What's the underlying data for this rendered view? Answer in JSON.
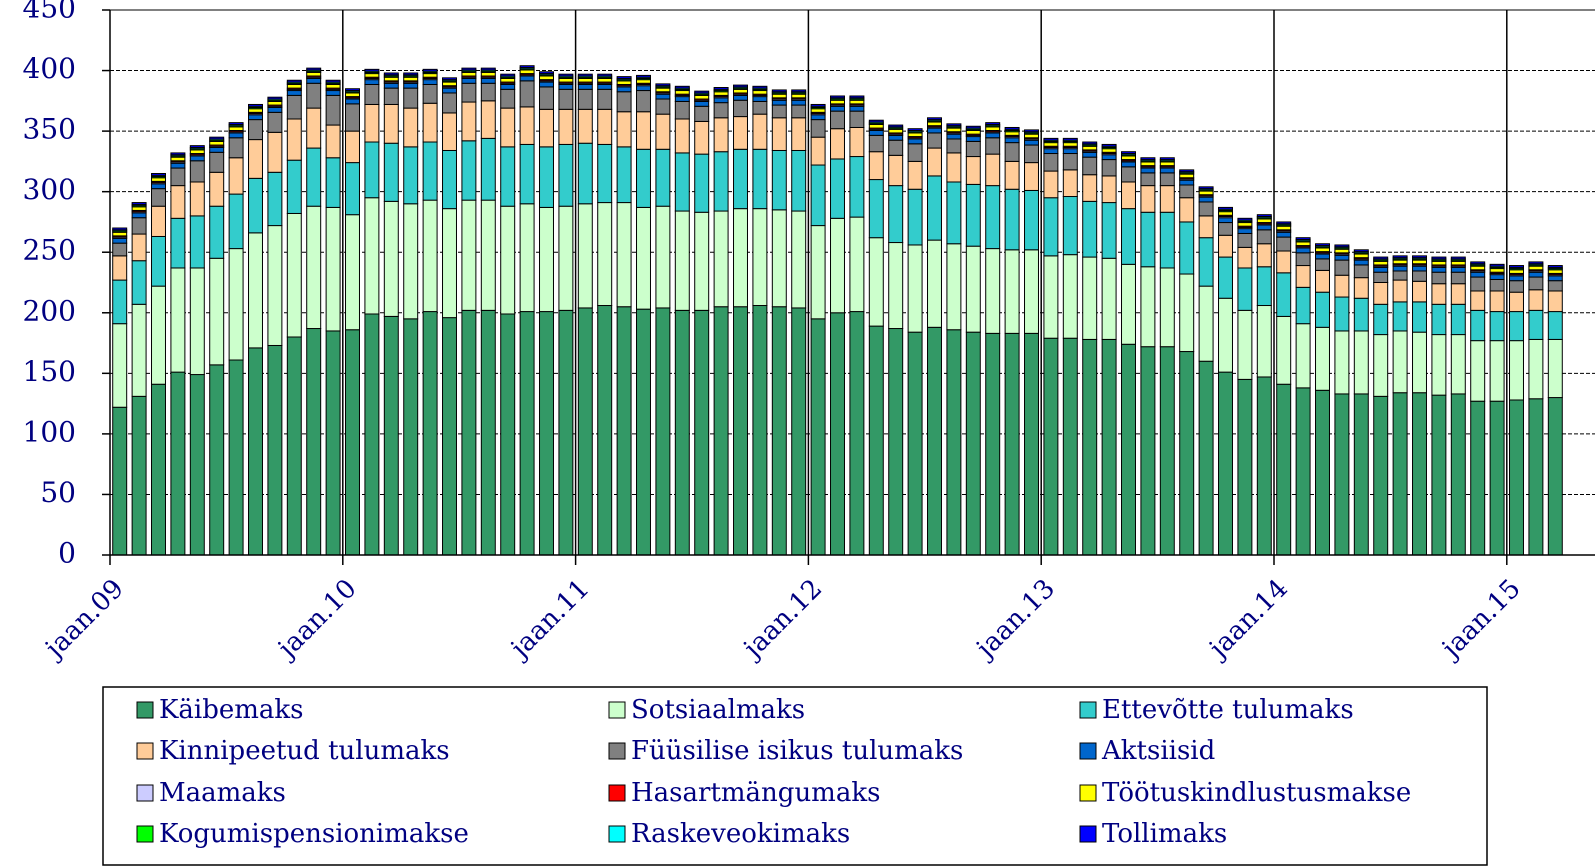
{
  "chart_data": {
    "type": "stacked_bar",
    "categories": [
      "jaan.09",
      null,
      null,
      null,
      null,
      null,
      null,
      null,
      null,
      null,
      null,
      null,
      "jaan.10",
      null,
      null,
      null,
      null,
      null,
      null,
      null,
      null,
      null,
      null,
      null,
      "jaan.11",
      null,
      null,
      null,
      null,
      null,
      null,
      null,
      null,
      null,
      null,
      null,
      "jaan.12",
      null,
      null,
      null,
      null,
      null,
      null,
      null,
      null,
      null,
      null,
      null,
      "jaan.13",
      null,
      null,
      null,
      null,
      null,
      null,
      null,
      null,
      null,
      null,
      null,
      "jaan.14",
      null,
      null,
      null,
      null,
      null,
      null,
      null,
      null,
      null,
      null,
      null,
      "jaan.15",
      null,
      null
    ],
    "ylim": [
      0,
      450
    ],
    "yticks": [
      0,
      50,
      100,
      150,
      200,
      250,
      300,
      350,
      400,
      450
    ],
    "grid": true,
    "series": [
      {
        "name": "Käibemaks",
        "color": "#339966",
        "values": [
          122,
          131,
          141,
          151,
          149,
          157,
          161,
          171,
          173,
          180,
          187,
          185,
          186,
          199,
          197,
          195,
          201,
          196,
          202,
          202,
          199,
          201,
          201,
          202,
          204,
          206,
          205,
          203,
          204,
          202,
          202,
          205,
          205,
          206,
          205,
          204,
          195,
          200,
          201,
          189,
          187,
          184,
          188,
          186,
          184,
          183,
          183,
          183,
          179,
          179,
          178,
          178,
          174,
          172,
          172,
          168,
          160,
          151,
          145,
          147,
          141,
          138,
          136,
          133,
          133,
          131,
          134,
          134,
          132,
          133,
          127,
          127,
          128,
          129,
          130
        ]
      },
      {
        "name": "Sotsiaalmaks",
        "color": "#ccffcc",
        "values": [
          69,
          76,
          81,
          86,
          88,
          88,
          92,
          95,
          99,
          102,
          101,
          102,
          95,
          96,
          95,
          95,
          92,
          90,
          91,
          91,
          89,
          89,
          86,
          86,
          86,
          85,
          86,
          84,
          84,
          82,
          81,
          79,
          81,
          80,
          80,
          80,
          77,
          78,
          78,
          73,
          71,
          72,
          72,
          71,
          71,
          70,
          69,
          69,
          68,
          69,
          68,
          67,
          66,
          66,
          65,
          64,
          62,
          61,
          57,
          59,
          56,
          53,
          52,
          52,
          52,
          51,
          51,
          50,
          50,
          49,
          50,
          50,
          49,
          49,
          48
        ]
      },
      {
        "name": "Ettevõtte tulumaks",
        "color": "#33cccc",
        "values": [
          36,
          36,
          41,
          41,
          43,
          43,
          45,
          45,
          44,
          44,
          48,
          41,
          43,
          46,
          48,
          47,
          48,
          48,
          49,
          51,
          49,
          49,
          50,
          51,
          50,
          48,
          46,
          48,
          47,
          48,
          48,
          49,
          49,
          49,
          49,
          50,
          50,
          49,
          50,
          48,
          47,
          46,
          53,
          51,
          51,
          52,
          50,
          49,
          48,
          48,
          46,
          46,
          46,
          45,
          46,
          43,
          40,
          34,
          35,
          32,
          36,
          30,
          29,
          28,
          27,
          25,
          24,
          25,
          25,
          25,
          25,
          24,
          24,
          24,
          23
        ]
      },
      {
        "name": "Kinnipeetud tulumaks",
        "color": "#ffcc99",
        "values": [
          20,
          22,
          25,
          27,
          28,
          28,
          30,
          32,
          33,
          34,
          33,
          27,
          26,
          31,
          32,
          32,
          32,
          31,
          32,
          31,
          32,
          31,
          31,
          29,
          28,
          29,
          29,
          31,
          29,
          28,
          27,
          28,
          27,
          29,
          27,
          27,
          23,
          25,
          24,
          23,
          25,
          23,
          23,
          24,
          23,
          26,
          23,
          23,
          22,
          22,
          22,
          22,
          22,
          22,
          22,
          20,
          18,
          18,
          17,
          19,
          18,
          18,
          18,
          18,
          17,
          18,
          18,
          17,
          17,
          17,
          16,
          17,
          16,
          17,
          17
        ]
      },
      {
        "name": "Füüsilise isikus tulumaks",
        "color": "#808080",
        "values": [
          10.5,
          13.5,
          14.5,
          14.5,
          17.5,
          16.5,
          16.5,
          16.5,
          16.5,
          19.5,
          20.5,
          24.5,
          22.5,
          16.5,
          13.5,
          16.5,
          15.5,
          16.5,
          15.5,
          14.5,
          15.5,
          21.5,
          18.5,
          16.5,
          16.5,
          16.5,
          16.5,
          17.5,
          12.5,
          14.5,
          12.5,
          12.5,
          13.5,
          10.5,
          10.5,
          10.5,
          14.5,
          14.5,
          13.5,
          13.5,
          12.5,
          14.5,
          12.5,
          11.5,
          12.5,
          13.5,
          15.5,
          14.5,
          14.5,
          13.5,
          14.5,
          13.5,
          12.5,
          10.5,
          10.5,
          10.5,
          11.5,
          10.5,
          11.5,
          11.5,
          11.5,
          10.5,
          9.5,
          12.5,
          10.5,
          8.5,
          7.5,
          8.5,
          9.5,
          9.5,
          11.5,
          9.5,
          9.5,
          10.5,
          8.5
        ]
      },
      {
        "name": "Aktsiisid",
        "color": "#0066cc",
        "values": [
          4,
          4,
          4,
          4,
          4,
          4,
          4,
          4,
          4,
          4,
          4,
          4,
          4,
          4,
          4,
          4,
          4,
          4,
          4,
          4,
          4,
          4,
          4,
          4,
          4,
          4,
          4,
          4,
          4,
          4,
          4,
          4,
          4,
          4,
          4,
          4,
          4,
          4,
          4,
          4,
          4,
          4,
          4,
          4,
          4,
          4,
          4,
          4,
          4,
          4,
          4,
          4,
          4,
          4,
          4,
          4,
          4,
          4,
          4,
          4,
          4,
          4,
          4,
          4,
          4,
          4,
          4,
          4,
          4,
          4,
          4,
          4,
          4,
          4,
          4
        ]
      },
      {
        "name": "Maamaks",
        "color": "#ccccff",
        "values": [
          1,
          1,
          1,
          1,
          1,
          1,
          1,
          1,
          1,
          1,
          1,
          1,
          1,
          1,
          1,
          1,
          1,
          1,
          1,
          1,
          1,
          1,
          1,
          1,
          1,
          1,
          1,
          1,
          1,
          1,
          1,
          1,
          1,
          1,
          1,
          1,
          1,
          1,
          1,
          1,
          1,
          1,
          1,
          1,
          1,
          1,
          1,
          1,
          1,
          1,
          1,
          1,
          1,
          1,
          1,
          1,
          1,
          1,
          1,
          1,
          1,
          1,
          1,
          1,
          1,
          1,
          1,
          1,
          1,
          1,
          1,
          1,
          1,
          1,
          1
        ]
      },
      {
        "name": "Hasartmängumaks",
        "color": "#ff0000",
        "values": [
          1,
          1,
          1,
          1,
          1,
          1,
          1,
          1,
          1,
          1,
          1,
          1,
          1,
          1,
          1,
          1,
          1,
          1,
          1,
          1,
          1,
          1,
          1,
          1,
          1,
          1,
          1,
          1,
          1,
          1,
          1,
          1,
          1,
          1,
          1,
          1,
          1,
          1,
          1,
          1,
          1,
          1,
          1,
          1,
          1,
          1,
          1,
          1,
          1,
          1,
          1,
          1,
          1,
          1,
          1,
          1,
          1,
          1,
          1,
          1,
          1,
          1,
          1,
          1,
          1,
          1,
          1,
          1,
          1,
          1,
          1,
          1,
          1,
          1,
          1
        ]
      },
      {
        "name": "Töötuskindlustusmakse",
        "color": "#ffff00",
        "values": [
          3,
          3,
          3,
          3,
          3,
          3,
          3,
          3,
          3,
          3,
          3,
          3,
          3,
          3,
          3,
          3,
          3,
          3,
          3,
          3,
          3,
          3,
          3,
          3,
          3,
          3,
          3,
          3,
          3,
          3,
          3,
          3,
          3,
          3,
          3,
          3,
          3,
          3,
          3,
          3,
          3,
          3,
          3,
          3,
          3,
          3,
          3,
          3,
          3,
          3,
          3,
          3,
          3,
          3,
          3,
          3,
          3,
          3,
          3,
          3,
          3,
          3,
          3,
          3,
          3,
          3,
          3,
          3,
          3,
          3,
          3,
          3,
          3,
          3,
          3
        ]
      },
      {
        "name": "Kogumispensionimakse",
        "color": "#00ff00",
        "values": [
          1,
          1,
          1,
          1,
          1,
          1,
          1,
          1,
          1,
          1,
          1,
          1,
          1,
          1,
          1,
          1,
          1,
          1,
          1,
          1,
          1,
          1,
          1,
          1,
          1,
          1,
          1,
          1,
          1,
          1,
          1,
          1,
          1,
          1,
          1,
          1,
          1,
          1,
          1,
          1,
          1,
          1,
          1,
          1,
          1,
          1,
          1,
          1,
          1,
          1,
          1,
          1,
          1,
          1,
          1,
          1,
          1,
          1,
          1,
          1,
          1,
          1,
          1,
          1,
          1,
          1,
          1,
          1,
          1,
          1,
          1,
          1,
          1,
          1,
          1
        ]
      },
      {
        "name": "Raskeveokimaks",
        "color": "#00ffff",
        "values": [
          1,
          1,
          1,
          1,
          1,
          1,
          1,
          1,
          1,
          1,
          1,
          1,
          1,
          1,
          1,
          1,
          1,
          1,
          1,
          1,
          1,
          1,
          1,
          1,
          1,
          1,
          1,
          1,
          1,
          1,
          1,
          1,
          1,
          1,
          1,
          1,
          1,
          1,
          1,
          1,
          1,
          1,
          1,
          1,
          1,
          1,
          1,
          1,
          1,
          1,
          1,
          1,
          1,
          1,
          1,
          1,
          1,
          1,
          1,
          1,
          1,
          1,
          1,
          1,
          1,
          1,
          1,
          1,
          1,
          1,
          1,
          1,
          1,
          1,
          1
        ]
      },
      {
        "name": "Tollimaks",
        "color": "#0000ff",
        "values": [
          1.5,
          1.5,
          1.5,
          1.5,
          1.5,
          1.5,
          1.5,
          1.5,
          1.5,
          1.5,
          1.5,
          1.5,
          1.5,
          1.5,
          1.5,
          1.5,
          1.5,
          1.5,
          1.5,
          1.5,
          1.5,
          1.5,
          1.5,
          1.5,
          1.5,
          1.5,
          1.5,
          1.5,
          1.5,
          1.5,
          1.5,
          1.5,
          1.5,
          1.5,
          1.5,
          1.5,
          1.5,
          1.5,
          1.5,
          1.5,
          1.5,
          1.5,
          1.5,
          1.5,
          1.5,
          1.5,
          1.5,
          1.5,
          1.5,
          1.5,
          1.5,
          1.5,
          1.5,
          1.5,
          1.5,
          1.5,
          1.5,
          1.5,
          1.5,
          1.5,
          1.5,
          1.5,
          1.5,
          1.5,
          1.5,
          1.5,
          1.5,
          1.5,
          1.5,
          1.5,
          1.5,
          1.5,
          1.5,
          1.5,
          1.5
        ]
      }
    ]
  }
}
